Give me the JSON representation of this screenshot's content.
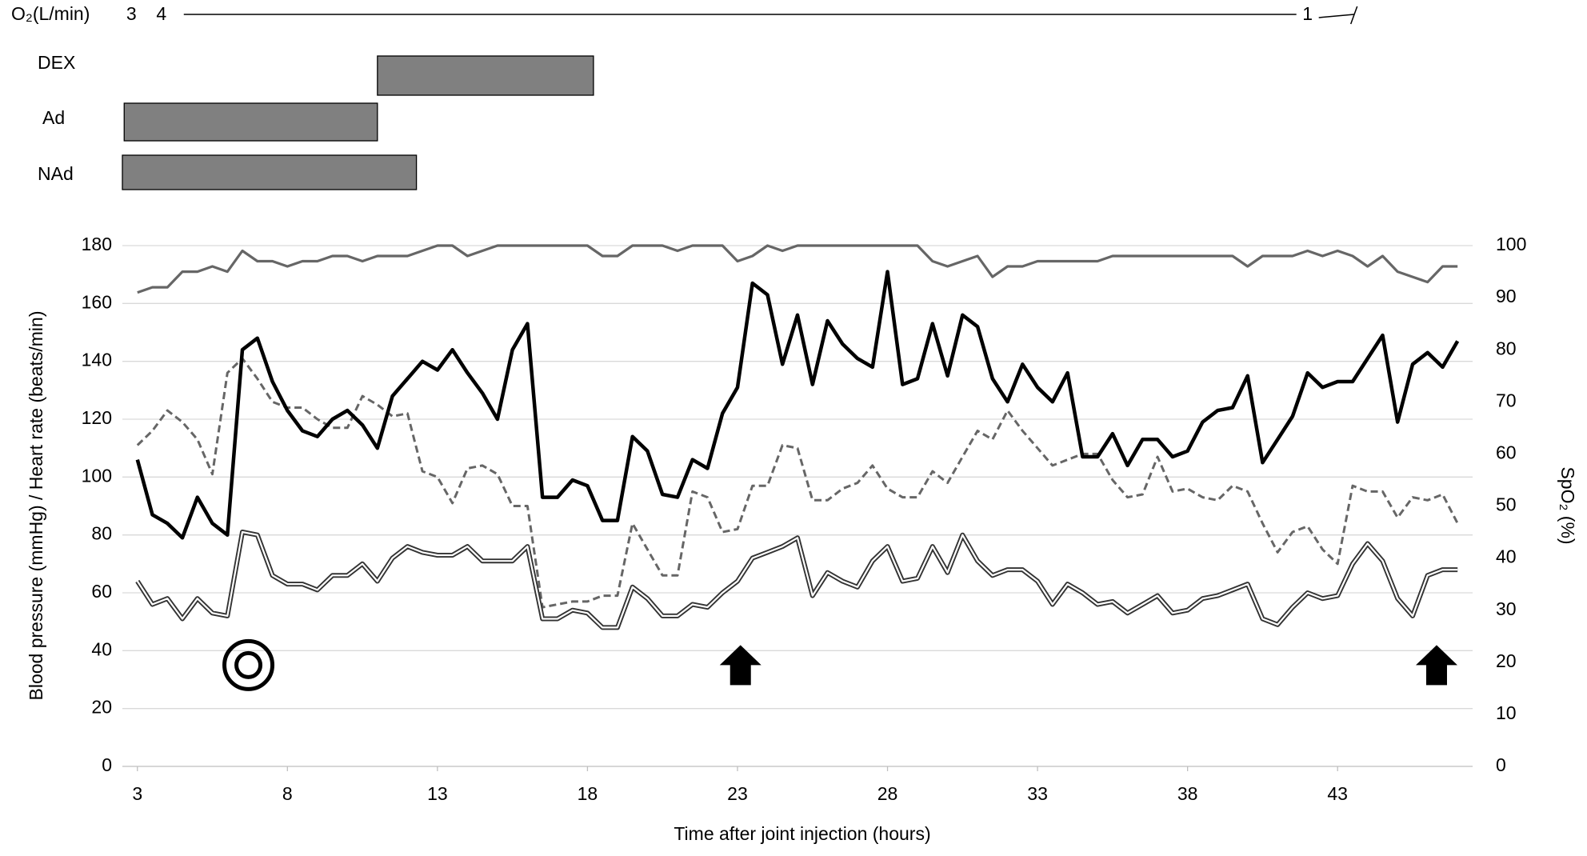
{
  "chart_data": {
    "type": "line",
    "x_label": "Time after joint injection (hours)",
    "y_label": "Blood pressure (mmHg) / Heart rate (beats/min)",
    "y2_label": "SpO₂ (%)",
    "xlim": [
      2.5,
      47.5
    ],
    "xticks": [
      3,
      8,
      13,
      18,
      23,
      28,
      33,
      38,
      43
    ],
    "ylim": [
      0,
      180
    ],
    "yticks": [
      0,
      20,
      40,
      60,
      80,
      100,
      120,
      140,
      160,
      180
    ],
    "y2lim": [
      0,
      100
    ],
    "y2ticks": [
      0,
      10,
      20,
      30,
      40,
      50,
      60,
      70,
      80,
      90,
      100
    ],
    "grid": true,
    "x": [
      3,
      3.5,
      4,
      4.5,
      5,
      5.5,
      6,
      6.5,
      7,
      7.5,
      8,
      8.5,
      9,
      9.5,
      10,
      10.5,
      11,
      11.5,
      12,
      12.5,
      13,
      13.5,
      14,
      14.5,
      15,
      15.5,
      16,
      16.5,
      17,
      17.5,
      18,
      18.5,
      19,
      19.5,
      20,
      20.5,
      21,
      21.5,
      22,
      22.5,
      23,
      23.5,
      24,
      24.5,
      25,
      25.5,
      26,
      26.5,
      27,
      27.5,
      28,
      28.5,
      29,
      29.5,
      30,
      30.5,
      31,
      31.5,
      32,
      32.5,
      33,
      33.5,
      34,
      34.5,
      35,
      35.5,
      36,
      36.5,
      37,
      37.5,
      38,
      38.5,
      39,
      39.5,
      40,
      40.5,
      41,
      41.5,
      42,
      42.5,
      43,
      43.5,
      44,
      44.5,
      45,
      45.5,
      46,
      46.5,
      47
    ],
    "series": [
      {
        "color": "#666666",
        "style": "solid",
        "axis": "y2",
        "values": [
          91,
          92,
          92,
          95,
          95,
          96,
          95,
          99,
          97,
          97,
          96,
          97,
          97,
          98,
          98,
          97,
          98,
          98,
          98,
          99,
          100,
          100,
          98,
          99,
          100,
          100,
          100,
          100,
          100,
          100,
          100,
          98,
          98,
          100,
          100,
          100,
          99,
          100,
          100,
          100,
          97,
          98,
          100,
          99,
          100,
          100,
          100,
          100,
          100,
          100,
          100,
          100,
          100,
          97,
          96,
          97,
          98,
          94,
          96,
          96,
          97,
          97,
          97,
          97,
          97,
          98,
          98,
          98,
          98,
          98,
          98,
          98,
          98,
          98,
          96,
          98,
          98,
          98,
          99,
          98,
          99,
          98,
          96,
          98,
          95,
          94,
          93,
          96,
          96
        ]
      },
      {
        "color": "#666666",
        "style": "dashed",
        "values": [
          111,
          116,
          123,
          119,
          113,
          101,
          136,
          141,
          134,
          126,
          124,
          124,
          120,
          117,
          117,
          128,
          125,
          121,
          122,
          102,
          100,
          91,
          103,
          104,
          101,
          90,
          90,
          55,
          56,
          57,
          57,
          59,
          59,
          84,
          75,
          66,
          66,
          95,
          93,
          81,
          82,
          97,
          97,
          111,
          110,
          92,
          92,
          96,
          98,
          104,
          96,
          93,
          93,
          102,
          98,
          107,
          116,
          113,
          123,
          116,
          110,
          104,
          106,
          108,
          108,
          99,
          93,
          94,
          107,
          95,
          96,
          93,
          92,
          97,
          95,
          84,
          74,
          81,
          83,
          75,
          70,
          97,
          95,
          95,
          86,
          93,
          92,
          94,
          84
        ]
      },
      {
        "color": "#333333",
        "style": "double",
        "values": [
          64,
          56,
          58,
          51,
          58,
          53,
          52,
          81,
          80,
          66,
          63,
          63,
          61,
          66,
          66,
          70,
          64,
          72,
          76,
          74,
          73,
          73,
          76,
          71,
          71,
          71,
          76,
          51,
          51,
          54,
          53,
          48,
          48,
          62,
          58,
          52,
          52,
          56,
          55,
          60,
          64,
          72,
          74,
          76,
          79,
          59,
          67,
          64,
          62,
          71,
          76,
          64,
          65,
          76,
          67,
          80,
          71,
          66,
          68,
          68,
          64,
          56,
          63,
          60,
          56,
          57,
          53,
          56,
          59,
          53,
          54,
          58,
          59,
          61,
          63,
          51,
          49,
          55,
          60,
          58,
          59,
          70,
          77,
          71,
          58,
          52,
          66,
          68,
          68
        ]
      },
      {
        "color": "#000000",
        "style": "bold",
        "values": [
          106,
          87,
          84,
          79,
          93,
          84,
          80,
          144,
          148,
          133,
          123,
          116,
          114,
          120,
          123,
          118,
          110,
          128,
          134,
          140,
          137,
          144,
          136,
          129,
          120,
          144,
          153,
          93,
          93,
          99,
          97,
          85,
          85,
          114,
          109,
          94,
          93,
          106,
          103,
          122,
          131,
          167,
          163,
          139,
          156,
          132,
          154,
          146,
          141,
          138,
          171,
          132,
          134,
          153,
          135,
          156,
          152,
          134,
          126,
          139,
          131,
          126,
          136,
          107,
          107,
          115,
          104,
          113,
          113,
          107,
          109,
          119,
          123,
          124,
          135,
          105,
          113,
          121,
          136,
          131,
          133,
          133,
          141,
          149,
          119,
          139,
          143,
          138,
          147
        ]
      }
    ],
    "markers": [
      {
        "shape": "double-circle",
        "x": 6.7,
        "y": 35
      },
      {
        "shape": "arrow",
        "x": 23.1,
        "y": 35
      },
      {
        "shape": "arrow",
        "x": 46.3,
        "y": 35
      }
    ],
    "o2": {
      "label": "O₂(L/min)",
      "doses": [
        {
          "label": "3",
          "x": 2.8
        },
        {
          "label": "4",
          "x": 3.8
        },
        {
          "label": "1",
          "x": 42
        }
      ]
    },
    "drugs": [
      {
        "name": "DEX",
        "start": 11,
        "end": 18.2
      },
      {
        "name": "Ad",
        "start": 2.56,
        "end": 11
      },
      {
        "name": "NAd",
        "start": 2.5,
        "end": 12.3
      }
    ]
  }
}
